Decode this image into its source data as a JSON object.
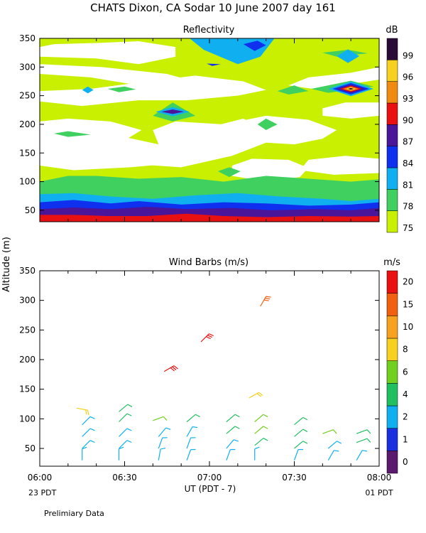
{
  "title": "CHATS Dixon, CA  Sodar  10 June 2007  day 161",
  "ylabel": "Altitude (m)",
  "xlabel": "UT  (PDT - 7)",
  "x_left_note": "23 PDT",
  "x_right_note": "01 PDT",
  "footer_note": "Prelimiary Data",
  "chart_data": [
    {
      "type": "heatmap",
      "title": "Reflectivity",
      "colorbar_unit": "dB",
      "x_ticks": [
        "06:00",
        "06:30",
        "07:00",
        "07:30",
        "08:00"
      ],
      "y_ticks": [
        50,
        100,
        150,
        200,
        250,
        300,
        350
      ],
      "xlim_minutes": [
        360,
        480
      ],
      "ylim": [
        30,
        350
      ],
      "levels": [
        75,
        78,
        81,
        84,
        87,
        90,
        93,
        96,
        99
      ],
      "level_labels": [
        "75",
        "78",
        "81",
        "84",
        "87",
        "90",
        "93",
        "96",
        "99"
      ],
      "level_colors": [
        "#c8f000",
        "#40d060",
        "#10b0f0",
        "#1030f0",
        "#4a1598",
        "#e81010",
        "#f08a10",
        "#f8d020",
        "#2a0a36"
      ],
      "below_threshold_color": "#ffffff",
      "features": [
        {
          "t_start": 360,
          "t_end": 480,
          "alt_low": 30,
          "alt_high": 42,
          "level": "90"
        },
        {
          "t_start": 360,
          "t_end": 480,
          "alt_low": 42,
          "alt_high": 52,
          "level": "87"
        },
        {
          "t_start": 360,
          "t_end": 480,
          "alt_low": 52,
          "alt_high": 62,
          "level": "84"
        },
        {
          "t_start": 360,
          "t_end": 480,
          "alt_low": 62,
          "alt_high": 78,
          "level": "81"
        },
        {
          "t_start": 360,
          "t_end": 480,
          "alt_low": 78,
          "alt_high": 100,
          "level": "78"
        },
        {
          "t_start": 415,
          "t_end": 442,
          "alt_low": 305,
          "alt_high": 350,
          "level": "81"
        },
        {
          "t_start": 432,
          "t_end": 438,
          "alt_low": 325,
          "alt_high": 345,
          "level": "84"
        },
        {
          "t_center": 407,
          "alt_center": 222,
          "level": "87"
        },
        {
          "t_center": 470,
          "alt_center": 262,
          "level": "99"
        },
        {
          "t_center": 469,
          "alt_center": 319,
          "level": "81"
        },
        {
          "t_center": 369,
          "alt_center": 182,
          "level": "78"
        }
      ]
    },
    {
      "type": "scatter",
      "title": "Wind Barbs (m/s)",
      "colorbar_unit": "m/s",
      "x_ticks": [
        "06:00",
        "06:30",
        "07:00",
        "07:30",
        "08:00"
      ],
      "y_ticks": [
        50,
        100,
        150,
        200,
        250,
        300,
        350
      ],
      "xlim_minutes": [
        360,
        480
      ],
      "ylim": [
        20,
        350
      ],
      "speed_levels": [
        0,
        1,
        2,
        4,
        6,
        8,
        10,
        15,
        20
      ],
      "speed_labels": [
        "0",
        "1",
        "2",
        "4",
        "6",
        "8",
        "10",
        "15",
        "20"
      ],
      "speed_colors": [
        "#5a1a6e",
        "#1a30e0",
        "#10b0f0",
        "#20c060",
        "#70d020",
        "#f8d020",
        "#f8a020",
        "#f06010",
        "#e81010"
      ],
      "barbs": [
        {
          "t": 375,
          "alt": 30,
          "speed": 2,
          "dir": 180
        },
        {
          "t": 375,
          "alt": 50,
          "speed": 3,
          "dir": 225
        },
        {
          "t": 375,
          "alt": 70,
          "speed": 3,
          "dir": 225
        },
        {
          "t": 375,
          "alt": 90,
          "speed": 3,
          "dir": 225
        },
        {
          "t": 373,
          "alt": 118,
          "speed": 8,
          "dir": 280
        },
        {
          "t": 388,
          "alt": 30,
          "speed": 2,
          "dir": 180
        },
        {
          "t": 388,
          "alt": 50,
          "speed": 3,
          "dir": 225
        },
        {
          "t": 388,
          "alt": 70,
          "speed": 3,
          "dir": 225
        },
        {
          "t": 388,
          "alt": 95,
          "speed": 4,
          "dir": 225
        },
        {
          "t": 388,
          "alt": 112,
          "speed": 4,
          "dir": 230
        },
        {
          "t": 402,
          "alt": 30,
          "speed": 2,
          "dir": 190
        },
        {
          "t": 402,
          "alt": 50,
          "speed": 2,
          "dir": 200
        },
        {
          "t": 402,
          "alt": 70,
          "speed": 3,
          "dir": 220
        },
        {
          "t": 400,
          "alt": 97,
          "speed": 6,
          "dir": 250
        },
        {
          "t": 404,
          "alt": 180,
          "speed": 20,
          "dir": 240
        },
        {
          "t": 412,
          "alt": 30,
          "speed": 2,
          "dir": 200
        },
        {
          "t": 412,
          "alt": 50,
          "speed": 2,
          "dir": 200
        },
        {
          "t": 412,
          "alt": 70,
          "speed": 3,
          "dir": 210
        },
        {
          "t": 412,
          "alt": 95,
          "speed": 4,
          "dir": 230
        },
        {
          "t": 417,
          "alt": 230,
          "speed": 20,
          "dir": 225
        },
        {
          "t": 426,
          "alt": 30,
          "speed": 2,
          "dir": 200
        },
        {
          "t": 426,
          "alt": 50,
          "speed": 3,
          "dir": 220
        },
        {
          "t": 426,
          "alt": 75,
          "speed": 4,
          "dir": 230
        },
        {
          "t": 426,
          "alt": 95,
          "speed": 4,
          "dir": 230
        },
        {
          "t": 436,
          "alt": 30,
          "speed": 2,
          "dir": 180
        },
        {
          "t": 436,
          "alt": 55,
          "speed": 4,
          "dir": 230
        },
        {
          "t": 436,
          "alt": 75,
          "speed": 6,
          "dir": 230
        },
        {
          "t": 436,
          "alt": 95,
          "speed": 6,
          "dir": 230
        },
        {
          "t": 434,
          "alt": 135,
          "speed": 8,
          "dir": 240
        },
        {
          "t": 438,
          "alt": 290,
          "speed": 15,
          "dir": 210
        },
        {
          "t": 450,
          "alt": 30,
          "speed": 2,
          "dir": 200
        },
        {
          "t": 450,
          "alt": 50,
          "speed": 4,
          "dir": 230
        },
        {
          "t": 450,
          "alt": 70,
          "speed": 4,
          "dir": 230
        },
        {
          "t": 450,
          "alt": 90,
          "speed": 4,
          "dir": 230
        },
        {
          "t": 462,
          "alt": 30,
          "speed": 2,
          "dir": 210
        },
        {
          "t": 462,
          "alt": 50,
          "speed": 2,
          "dir": 230
        },
        {
          "t": 460,
          "alt": 75,
          "speed": 6,
          "dir": 250
        },
        {
          "t": 472,
          "alt": 30,
          "speed": 2,
          "dir": 210
        },
        {
          "t": 472,
          "alt": 60,
          "speed": 4,
          "dir": 250
        },
        {
          "t": 472,
          "alt": 75,
          "speed": 4,
          "dir": 250
        }
      ]
    }
  ]
}
